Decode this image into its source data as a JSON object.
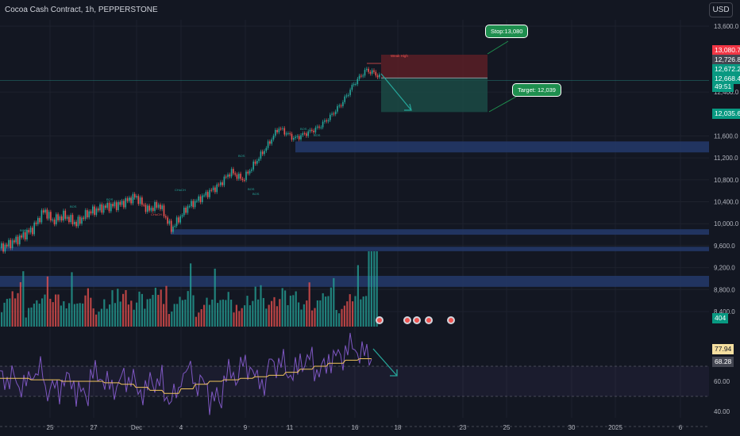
{
  "header": {
    "title": "Cocoa Cash Contract, 1h, PEPPERSTONE",
    "currency_button": "USD"
  },
  "colors": {
    "background": "#131722",
    "up": "#26a69a",
    "down": "#ef5350",
    "zone": "#253a6b",
    "rsi": "#7e57c2",
    "rsi_ma": "#f0c35b"
  },
  "price_axis": {
    "ticks": [
      "13,600.0",
      "12,400.0",
      "11,600.0",
      "11,200.0",
      "10,800.0",
      "10,400.0",
      "10,000.0",
      "9,600.0",
      "9,200.0",
      "8,800.0",
      "8,400.0"
    ]
  },
  "price_tags": {
    "stop": "13,080.7",
    "high": "12,726.8",
    "last": "12,672.2",
    "current": "12,668.4",
    "countdown": "49:51",
    "target": "12,035.6",
    "volume": "404"
  },
  "rsi_axis": {
    "ticks": [
      "60.00",
      "40.00"
    ],
    "rsi_tag": "77.94",
    "ma_tag": "68.28"
  },
  "time_axis": {
    "labels": [
      "25",
      "27",
      "Dec",
      "4",
      "9",
      "11",
      "16",
      "18",
      "23",
      "25",
      "30",
      "2025",
      "6"
    ]
  },
  "annotations": {
    "stop": "Stop:13,080",
    "target": "Target: 12,039",
    "weak_high": "Weak High",
    "labels": [
      "BOS",
      "BOS",
      "BOS",
      "BOS",
      "BOS",
      "CHoCH",
      "CHoCH",
      "BOS",
      "BOS",
      "BOS",
      "BOS"
    ]
  },
  "chart_data": {
    "type": "candlestick",
    "title": "Cocoa Cash Contract, 1h, PEPPERSTONE",
    "ylim": [
      8200,
      13800
    ],
    "close_path": [
      [
        0,
        9550
      ],
      [
        20,
        9700
      ],
      [
        40,
        9900
      ],
      [
        55,
        10250
      ],
      [
        65,
        10050
      ],
      [
        80,
        10150
      ],
      [
        95,
        10000
      ],
      [
        110,
        10200
      ],
      [
        130,
        10300
      ],
      [
        150,
        10350
      ],
      [
        170,
        10500
      ],
      [
        185,
        10250
      ],
      [
        200,
        10350
      ],
      [
        215,
        9900
      ],
      [
        235,
        10300
      ],
      [
        255,
        10500
      ],
      [
        275,
        10700
      ],
      [
        290,
        10950
      ],
      [
        305,
        10800
      ],
      [
        320,
        11100
      ],
      [
        335,
        11400
      ],
      [
        350,
        11750
      ],
      [
        370,
        11550
      ],
      [
        385,
        11650
      ],
      [
        400,
        11750
      ],
      [
        415,
        11950
      ],
      [
        430,
        12200
      ],
      [
        445,
        12550
      ],
      [
        460,
        12800
      ],
      [
        470,
        12750
      ],
      [
        478,
        12668
      ]
    ],
    "volume_pattern": [
      22,
      18,
      30,
      25,
      35,
      20,
      28,
      40,
      33,
      26,
      45,
      38,
      30,
      22,
      50,
      42,
      36,
      28,
      32,
      48,
      55,
      40,
      30,
      25,
      60,
      45,
      38,
      52,
      80,
      100
    ],
    "rsi_pattern": [
      62,
      58,
      66,
      55,
      60,
      52,
      64,
      57,
      62,
      54,
      60,
      50,
      66,
      58,
      48,
      64,
      70,
      60,
      72,
      66,
      74,
      68,
      76,
      82,
      78,
      70
    ],
    "rsi_ma_pattern": [
      62,
      62,
      61,
      61,
      60,
      60,
      60,
      59,
      58,
      56,
      54,
      52,
      55,
      58,
      60,
      61,
      62,
      63,
      64,
      66,
      68,
      70,
      72,
      74,
      75,
      74
    ],
    "zones": [
      {
        "from": 11300,
        "to": 11500
      },
      {
        "from": 9800,
        "to": 9900
      },
      {
        "from": 9500,
        "to": 9580
      },
      {
        "from": 8850,
        "to": 9050
      }
    ],
    "position": {
      "entry": 12672,
      "stop": 13080,
      "target": 12035
    }
  }
}
